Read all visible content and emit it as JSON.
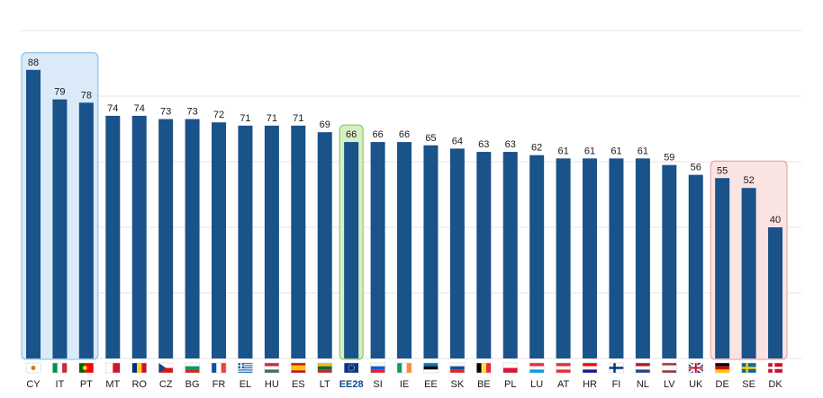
{
  "chart_data": {
    "type": "bar",
    "categories": [
      "CY",
      "IT",
      "PT",
      "MT",
      "RO",
      "CZ",
      "BG",
      "FR",
      "EL",
      "HU",
      "ES",
      "LT",
      "EE28",
      "SI",
      "IE",
      "EE",
      "SK",
      "BE",
      "PL",
      "LU",
      "AT",
      "HR",
      "FI",
      "NL",
      "LV",
      "UK",
      "DE",
      "SE",
      "DK"
    ],
    "values": [
      88,
      79,
      78,
      74,
      74,
      73,
      73,
      72,
      71,
      71,
      71,
      69,
      66,
      66,
      66,
      65,
      64,
      63,
      63,
      62,
      61,
      61,
      61,
      61,
      59,
      56,
      55,
      52,
      40
    ],
    "ylim": [
      0,
      100
    ],
    "grid": true,
    "bar_color": "#1a528a",
    "highlights": [
      {
        "categories": [
          "CY",
          "IT",
          "PT"
        ],
        "fill": "#daeaf8",
        "stroke": "#7db8e6"
      },
      {
        "categories": [
          "EE28"
        ],
        "fill": "#d6f0c2",
        "stroke": "#7cc25d"
      },
      {
        "categories": [
          "DE",
          "SE",
          "DK"
        ],
        "fill": "#fae3e3",
        "stroke": "#e59a9a"
      }
    ],
    "bold_categories": [
      "EE28"
    ]
  }
}
